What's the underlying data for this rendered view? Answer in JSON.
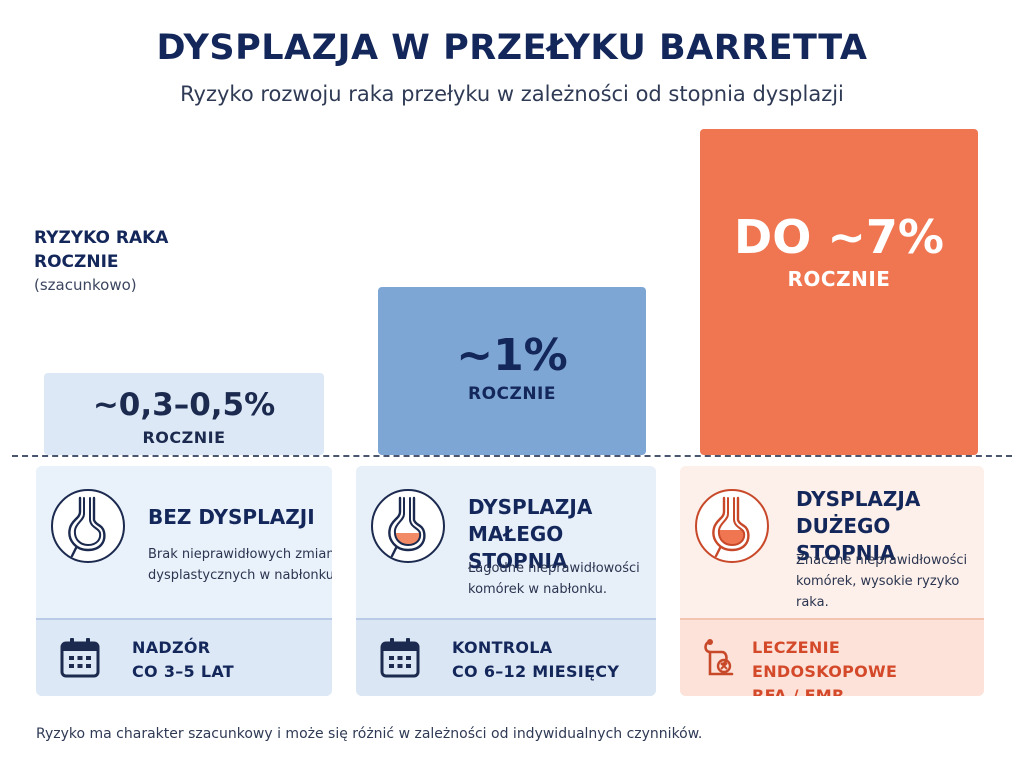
{
  "header": {
    "title": "DYSPLAZJA W PRZEŁYKU BARRETTA",
    "subtitle": "Ryzyko rozwoju raka przełyku w zależności od stopnia dysplazji"
  },
  "axis": {
    "label_line1": "RYZYKO RAKA",
    "label_line2": "ROCZNIE",
    "note": "(szacunkowo)"
  },
  "chart_data": {
    "type": "bar",
    "categories": [
      "BEZ DYSPLAZJI",
      "DYSPLAZJA MAŁEGO STOPNIA",
      "DYSPLAZJA DUŻEGO STOPNIA"
    ],
    "values": [
      0.4,
      1,
      7
    ],
    "value_labels": [
      "~0,3–0,5%",
      "~1%",
      "DO ~7%"
    ],
    "unit_label": "ROCZNIE",
    "colors": [
      "#dde8f6",
      "#7da6d5",
      "#ef7651"
    ]
  },
  "cards": [
    {
      "title_line1": "BEZ DYSPLAZJI",
      "title_line2": "",
      "desc_line1": "Brak nieprawidłowych zmian",
      "desc_line2": "dysplastycznych w nabłonku.",
      "desc_line3": "",
      "icon": "stomach-icon",
      "bottom_icon": "calendar-icon",
      "bottom_line1": "NADZÓR",
      "bottom_line2": "CO 3–5 LAT"
    },
    {
      "title_line1": "DYSPLAZJA",
      "title_line2": "MAŁEGO STOPNIA",
      "desc_line1": "Łagodne nieprawidłowości",
      "desc_line2": "komórek w nabłonku.",
      "desc_line3": "",
      "icon": "stomach-icon",
      "bottom_icon": "calendar-icon",
      "bottom_line1": "KONTROLA",
      "bottom_line2": "CO 6–12 MIESIĘCY"
    },
    {
      "title_line1": "DYSPLAZJA",
      "title_line2": "DUŻEGO STOPNIA",
      "desc_line1": "Znaczne nieprawidłowości",
      "desc_line2": "komórek, wysokie ryzyko",
      "desc_line3": "raka.",
      "icon": "stomach-icon",
      "bottom_icon": "endoscope-icon",
      "bottom_line1": "LECZENIE ENDOSKOPOWE",
      "bottom_line2": "RFA / EMR"
    }
  ],
  "footnote": "Ryzyko ma charakter szacunkowy i może się różnić w zależności od indywidualnych czynników."
}
